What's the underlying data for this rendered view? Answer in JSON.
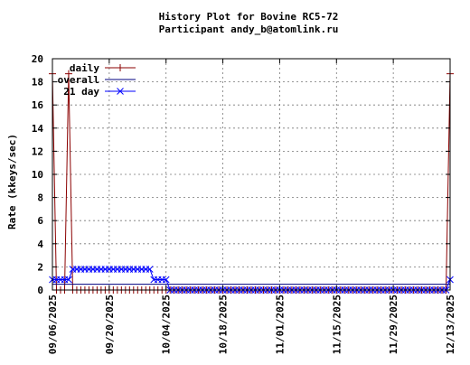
{
  "chart_data": {
    "type": "line",
    "title": "History Plot for Bovine RC5-72",
    "subtitle": "Participant andy_b@atomlink.ru",
    "ylabel": "Rate (kkeys/sec)",
    "xlabel": "",
    "ylim": [
      0,
      20
    ],
    "yticks": [
      0,
      2,
      4,
      6,
      8,
      10,
      12,
      14,
      16,
      18,
      20
    ],
    "xlim": [
      "2025-09-06",
      "2025-12-13"
    ],
    "xtick_labels": [
      "09/06/2025",
      "09/20/2025",
      "10/04/2025",
      "10/18/2025",
      "11/01/2025",
      "11/15/2025",
      "11/29/2025",
      "12/13/2025"
    ],
    "grid": true,
    "legend_position": "top-left",
    "series": [
      {
        "name": "daily",
        "color": "#8b0000",
        "marker": "plus",
        "points": [
          [
            "2025-09-06",
            18.7
          ],
          [
            "2025-09-07",
            0
          ],
          [
            "2025-09-08",
            0
          ],
          [
            "2025-09-09",
            0
          ],
          [
            "2025-09-10",
            18.7
          ],
          [
            "2025-09-11",
            0
          ],
          [
            "2025-12-12",
            0
          ],
          [
            "2025-12-13",
            18.7
          ]
        ]
      },
      {
        "name": "overall",
        "color": "#000080",
        "marker": "none",
        "points": [
          [
            "2025-09-06",
            0.5
          ],
          [
            "2025-12-13",
            0.5
          ]
        ]
      },
      {
        "name": "21 day",
        "color": "#0000ff",
        "marker": "cross",
        "points": [
          [
            "2025-09-06",
            0.9
          ],
          [
            "2025-09-07",
            0.9
          ],
          [
            "2025-09-08",
            0.9
          ],
          [
            "2025-09-09",
            0.9
          ],
          [
            "2025-09-10",
            0.9
          ],
          [
            "2025-09-11",
            1.8
          ],
          [
            "2025-09-12",
            1.8
          ],
          [
            "2025-09-13",
            1.8
          ],
          [
            "2025-09-14",
            1.8
          ],
          [
            "2025-09-15",
            1.8
          ],
          [
            "2025-09-16",
            1.8
          ],
          [
            "2025-09-17",
            1.8
          ],
          [
            "2025-09-18",
            1.8
          ],
          [
            "2025-09-19",
            1.8
          ],
          [
            "2025-09-20",
            1.8
          ],
          [
            "2025-09-21",
            1.8
          ],
          [
            "2025-09-22",
            1.8
          ],
          [
            "2025-09-23",
            1.8
          ],
          [
            "2025-09-24",
            1.8
          ],
          [
            "2025-09-25",
            1.8
          ],
          [
            "2025-09-26",
            1.8
          ],
          [
            "2025-09-27",
            1.8
          ],
          [
            "2025-09-28",
            1.8
          ],
          [
            "2025-09-29",
            1.8
          ],
          [
            "2025-09-30",
            1.8
          ],
          [
            "2025-10-01",
            0.9
          ],
          [
            "2025-10-02",
            0.9
          ],
          [
            "2025-10-03",
            0.9
          ],
          [
            "2025-10-04",
            0.9
          ],
          [
            "2025-10-05",
            0
          ],
          [
            "2025-12-12",
            0
          ],
          [
            "2025-12-13",
            0.9
          ]
        ]
      }
    ]
  }
}
